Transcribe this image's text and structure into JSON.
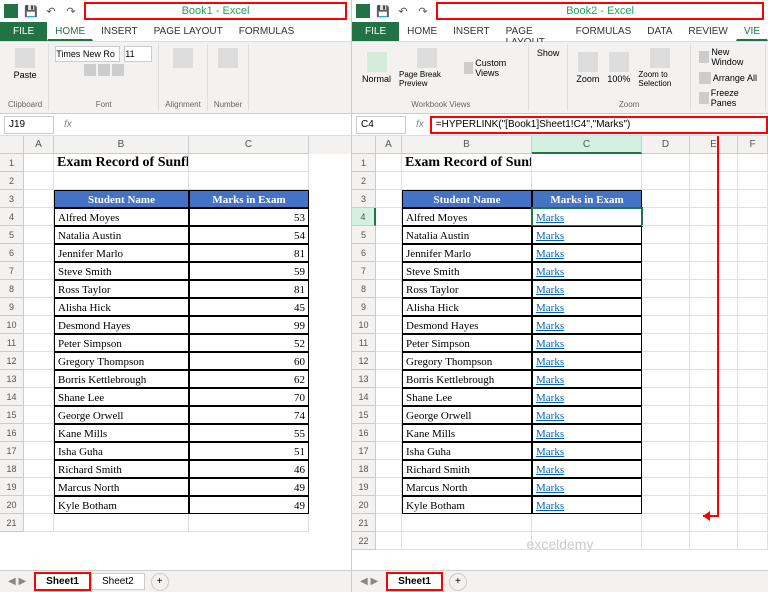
{
  "left": {
    "title": "Book1 - Excel",
    "tabs": [
      "FILE",
      "HOME",
      "INSERT",
      "PAGE LAYOUT",
      "FORMULAS"
    ],
    "activeTab": "HOME",
    "font": "Times New Ro",
    "fontSize": "11",
    "groups": {
      "clipboard": "Clipboard",
      "font": "Font",
      "alignment": "Alignment",
      "number": "Number",
      "paste": "Paste"
    },
    "namebox": "J19",
    "formula": "",
    "cols": [
      {
        "l": "A",
        "w": 30
      },
      {
        "l": "B",
        "w": 135
      },
      {
        "l": "C",
        "w": 120
      }
    ],
    "heading": "Exam Record of Sunflower Kindergarten",
    "headers": [
      "Student Name",
      "Marks in Exam"
    ],
    "rows": [
      {
        "n": "Alfred Moyes",
        "m": 53
      },
      {
        "n": "Natalia Austin",
        "m": 54
      },
      {
        "n": "Jennifer Marlo",
        "m": 81
      },
      {
        "n": "Steve Smith",
        "m": 59
      },
      {
        "n": "Ross Taylor",
        "m": 81
      },
      {
        "n": "Alisha Hick",
        "m": 45
      },
      {
        "n": "Desmond Hayes",
        "m": 99
      },
      {
        "n": "Peter Simpson",
        "m": 52
      },
      {
        "n": "Gregory Thompson",
        "m": 60
      },
      {
        "n": "Borris Kettlebrough",
        "m": 62
      },
      {
        "n": "Shane Lee",
        "m": 70
      },
      {
        "n": "George Orwell",
        "m": 74
      },
      {
        "n": "Kane Mills",
        "m": 55
      },
      {
        "n": "Isha Guha",
        "m": 51
      },
      {
        "n": "Richard Smith",
        "m": 46
      },
      {
        "n": "Marcus North",
        "m": 49
      },
      {
        "n": "Kyle Botham",
        "m": 49
      }
    ],
    "sheets": [
      "Sheet1",
      "Sheet2"
    ],
    "activeSheet": 0
  },
  "right": {
    "title": "Book2 - Excel",
    "tabs": [
      "FILE",
      "HOME",
      "INSERT",
      "PAGE LAYOUT",
      "FORMULAS",
      "DATA",
      "REVIEW",
      "VIE"
    ],
    "activeTab": "VIE",
    "groups": {
      "views": "Workbook Views",
      "zoom": "Zoom",
      "normal": "Normal",
      "pagebreak": "Page Break Preview",
      "custom": "Custom Views",
      "show": "Show",
      "zoomBtn": "Zoom",
      "hundred": "100%",
      "zoomsel": "Zoom to Selection",
      "newwin": "New Window",
      "arrange": "Arrange All",
      "freeze": "Freeze Panes"
    },
    "namebox": "C4",
    "formula": "=HYPERLINK(\"[Book1]Sheet1!C4\",\"Marks\")",
    "cols": [
      {
        "l": "A",
        "w": 26
      },
      {
        "l": "B",
        "w": 130
      },
      {
        "l": "C",
        "w": 110
      },
      {
        "l": "D",
        "w": 48
      },
      {
        "l": "E",
        "w": 48
      },
      {
        "l": "F",
        "w": 30
      }
    ],
    "heading": "Exam Record of Sunflower Kindergarten",
    "headers": [
      "Student Name",
      "Marks in Exam"
    ],
    "linkText": "Marks",
    "rows": [
      "Alfred Moyes",
      "Natalia Austin",
      "Jennifer Marlo",
      "Steve Smith",
      "Ross Taylor",
      "Alisha Hick",
      "Desmond Hayes",
      "Peter Simpson",
      "Gregory Thompson",
      "Borris Kettlebrough",
      "Shane Lee",
      "George Orwell",
      "Kane Mills",
      "Isha Guha",
      "Richard Smith",
      "Marcus North",
      "Kyle Botham"
    ],
    "sheets": [
      "Sheet1"
    ],
    "activeSheet": 0,
    "selectedCell": {
      "row": 4,
      "col": "C"
    }
  },
  "watermark": "exceldemy"
}
